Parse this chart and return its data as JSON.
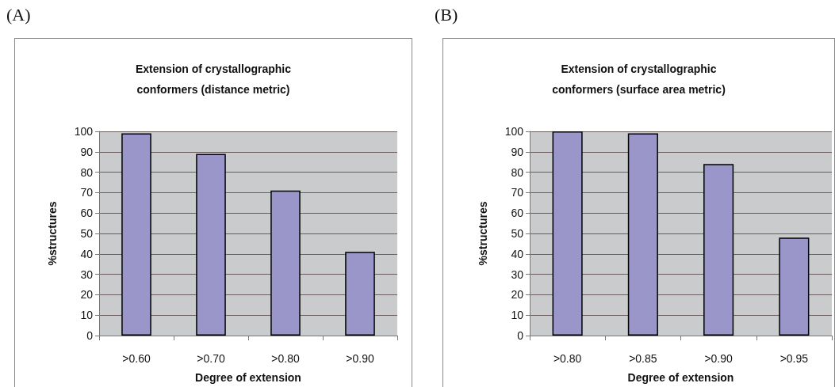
{
  "chart_data": [
    {
      "type": "bar",
      "title": "Extension of crystallographic\nconformers (distance metric)",
      "xlabel": "Degree of extension",
      "ylabel": "%structures",
      "annotations": [
        "(A)"
      ],
      "categories": [
        ">0.60",
        ">0.70",
        ">0.80",
        ">0.90"
      ],
      "values": [
        99,
        89,
        71,
        41
      ],
      "color": "#9b96c9",
      "ylim": [
        0,
        100
      ],
      "yticks": [
        0,
        10,
        20,
        30,
        40,
        50,
        60,
        70,
        80,
        90,
        100
      ],
      "grid": "y"
    },
    {
      "type": "bar",
      "title": "Extension of crystallographic\nconformers (surface area metric)",
      "xlabel": "Degree of extension",
      "ylabel": "%structures",
      "annotations": [
        "(B)"
      ],
      "categories": [
        ">0.80",
        ">0.85",
        ">0.90",
        ">0.95"
      ],
      "values": [
        100,
        99,
        84,
        48
      ],
      "color": "#9b96c9",
      "ylim": [
        0,
        100
      ],
      "yticks": [
        0,
        10,
        20,
        30,
        40,
        50,
        60,
        70,
        80,
        90,
        100
      ],
      "grid": "y"
    }
  ]
}
